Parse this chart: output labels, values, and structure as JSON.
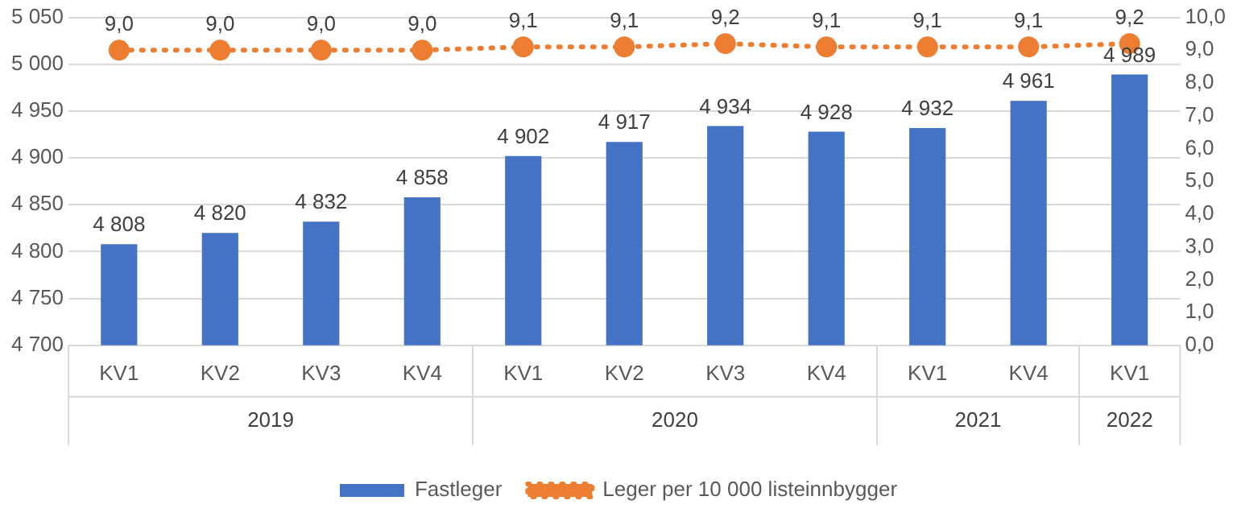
{
  "chart_data": {
    "type": "bar",
    "categories": [
      "KV1",
      "KV2",
      "KV3",
      "KV4",
      "KV1",
      "KV2",
      "KV3",
      "KV4",
      "KV1",
      "KV4",
      "KV1"
    ],
    "annotations": [
      "2019",
      "2020",
      "2021",
      "2022"
    ],
    "series": [
      {
        "name": "Fastleger",
        "color": "#4472c4",
        "values": [
          4808,
          4820,
          4832,
          4858,
          4902,
          4917,
          4934,
          4928,
          4932,
          4961,
          4989
        ]
      },
      {
        "name": "Leger per 10 000 listeinnbygger",
        "type": "line",
        "axis": "y2",
        "color": "#ed7d31",
        "values": [
          9.0,
          9.0,
          9.0,
          9.0,
          9.1,
          9.1,
          9.2,
          9.1,
          9.1,
          9.1,
          9.2
        ],
        "value_labels": [
          "9,0",
          "9,0",
          "9,0",
          "9,0",
          "9,1",
          "9,1",
          "9,2",
          "9,1",
          "9,1",
          "9,1",
          "9,2"
        ]
      }
    ],
    "ylim": [
      4700,
      5050
    ],
    "yticks": [
      4700,
      4750,
      4800,
      4850,
      4900,
      4950,
      5000,
      5050
    ],
    "y2lim": [
      0,
      10
    ],
    "y2ticks": [
      {
        "value": 0,
        "label": "0,0"
      },
      {
        "value": 1,
        "label": "1,0"
      },
      {
        "value": 2,
        "label": "2,0"
      },
      {
        "value": 3,
        "label": "3,0"
      },
      {
        "value": 4,
        "label": "4,0"
      },
      {
        "value": 5,
        "label": "5,0"
      },
      {
        "value": 6,
        "label": "6,0"
      },
      {
        "value": 7,
        "label": "7,0"
      },
      {
        "value": 8,
        "label": "8,0"
      },
      {
        "value": 9,
        "label": "9,0"
      },
      {
        "value": 10,
        "label": "10,0"
      }
    ],
    "grid": "y",
    "legend": "bottom",
    "marker": "circle",
    "line_style": "dotted",
    "data_labels": true
  }
}
